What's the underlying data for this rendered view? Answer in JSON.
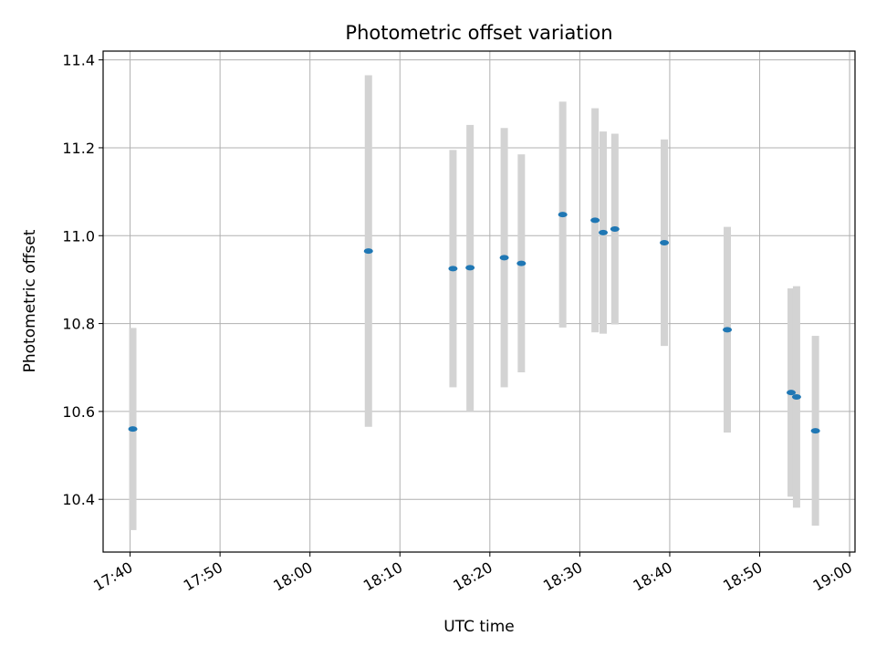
{
  "chart_data": {
    "type": "scatter",
    "title": "Photometric offset variation",
    "xlabel": "UTC time",
    "ylabel": "Photometric offset",
    "x_unit": "time (HH:MM)",
    "xlim": [
      "17:37:00",
      "19:00:36"
    ],
    "ylim": [
      10.28,
      11.42
    ],
    "grid": true,
    "x_ticks": [
      "17:40",
      "17:50",
      "18:00",
      "18:10",
      "18:20",
      "18:30",
      "18:40",
      "18:50",
      "19:00"
    ],
    "y_ticks": [
      "10.4",
      "10.6",
      "10.8",
      "11.0",
      "11.2",
      "11.4"
    ],
    "colors": {
      "point": "#1f77b4",
      "errorbar": "#d3d3d3",
      "grid": "#b0b0b0"
    },
    "points": [
      {
        "x": "17:40:18",
        "y": 10.56,
        "err": 0.23
      },
      {
        "x": "18:06:30",
        "y": 10.965,
        "err": 0.4
      },
      {
        "x": "18:15:54",
        "y": 10.925,
        "err": 0.27
      },
      {
        "x": "18:17:48",
        "y": 10.927,
        "err": 0.325
      },
      {
        "x": "18:21:36",
        "y": 10.95,
        "err": 0.295
      },
      {
        "x": "18:23:30",
        "y": 10.937,
        "err": 0.248
      },
      {
        "x": "18:28:06",
        "y": 11.048,
        "err": 0.257
      },
      {
        "x": "18:31:42",
        "y": 11.035,
        "err": 0.255
      },
      {
        "x": "18:32:36",
        "y": 11.007,
        "err": 0.23
      },
      {
        "x": "18:33:54",
        "y": 11.015,
        "err": 0.217
      },
      {
        "x": "18:39:24",
        "y": 10.984,
        "err": 0.235
      },
      {
        "x": "18:46:24",
        "y": 10.786,
        "err": 0.234
      },
      {
        "x": "18:53:30",
        "y": 10.643,
        "err": 0.237
      },
      {
        "x": "18:54:06",
        "y": 10.633,
        "err": 0.252
      },
      {
        "x": "18:56:12",
        "y": 10.556,
        "err": 0.216
      }
    ]
  }
}
